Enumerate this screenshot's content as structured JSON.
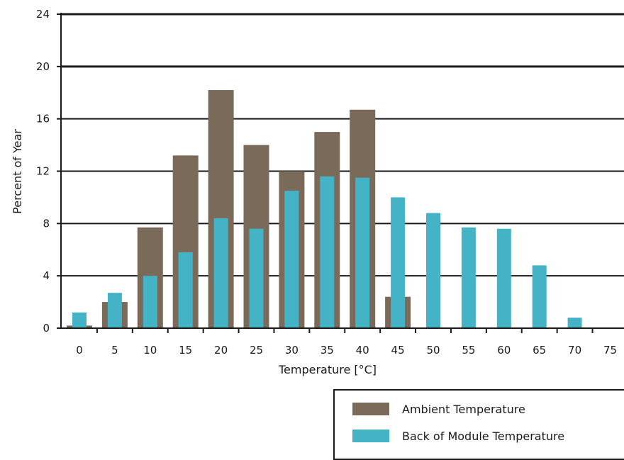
{
  "chart_data": {
    "type": "bar",
    "xlabel": "Temperature [°C]",
    "ylabel": "Percent of Year",
    "ylim": [
      0,
      24
    ],
    "yticks": [
      "0",
      "4",
      "8",
      "12",
      "16",
      "20",
      "24"
    ],
    "categories": [
      "0",
      "5",
      "10",
      "15",
      "20",
      "25",
      "30",
      "35",
      "40",
      "45",
      "50",
      "55",
      "60",
      "65",
      "70",
      "75"
    ],
    "grid": true,
    "legend_position": "bottom-right",
    "series": [
      {
        "name": "Ambient Temperature",
        "color": "#7a6a5a",
        "values": [
          0.2,
          2.0,
          7.7,
          13.2,
          18.2,
          14.0,
          12.0,
          15.0,
          16.7,
          2.4,
          0,
          0,
          0,
          0,
          0,
          0
        ]
      },
      {
        "name": "Back of Module Temperature",
        "color": "#45b3c6",
        "values": [
          1.2,
          2.7,
          4.0,
          5.8,
          8.4,
          7.6,
          10.5,
          11.6,
          11.5,
          10.0,
          8.8,
          7.7,
          7.6,
          4.8,
          0.8,
          0
        ]
      }
    ]
  }
}
